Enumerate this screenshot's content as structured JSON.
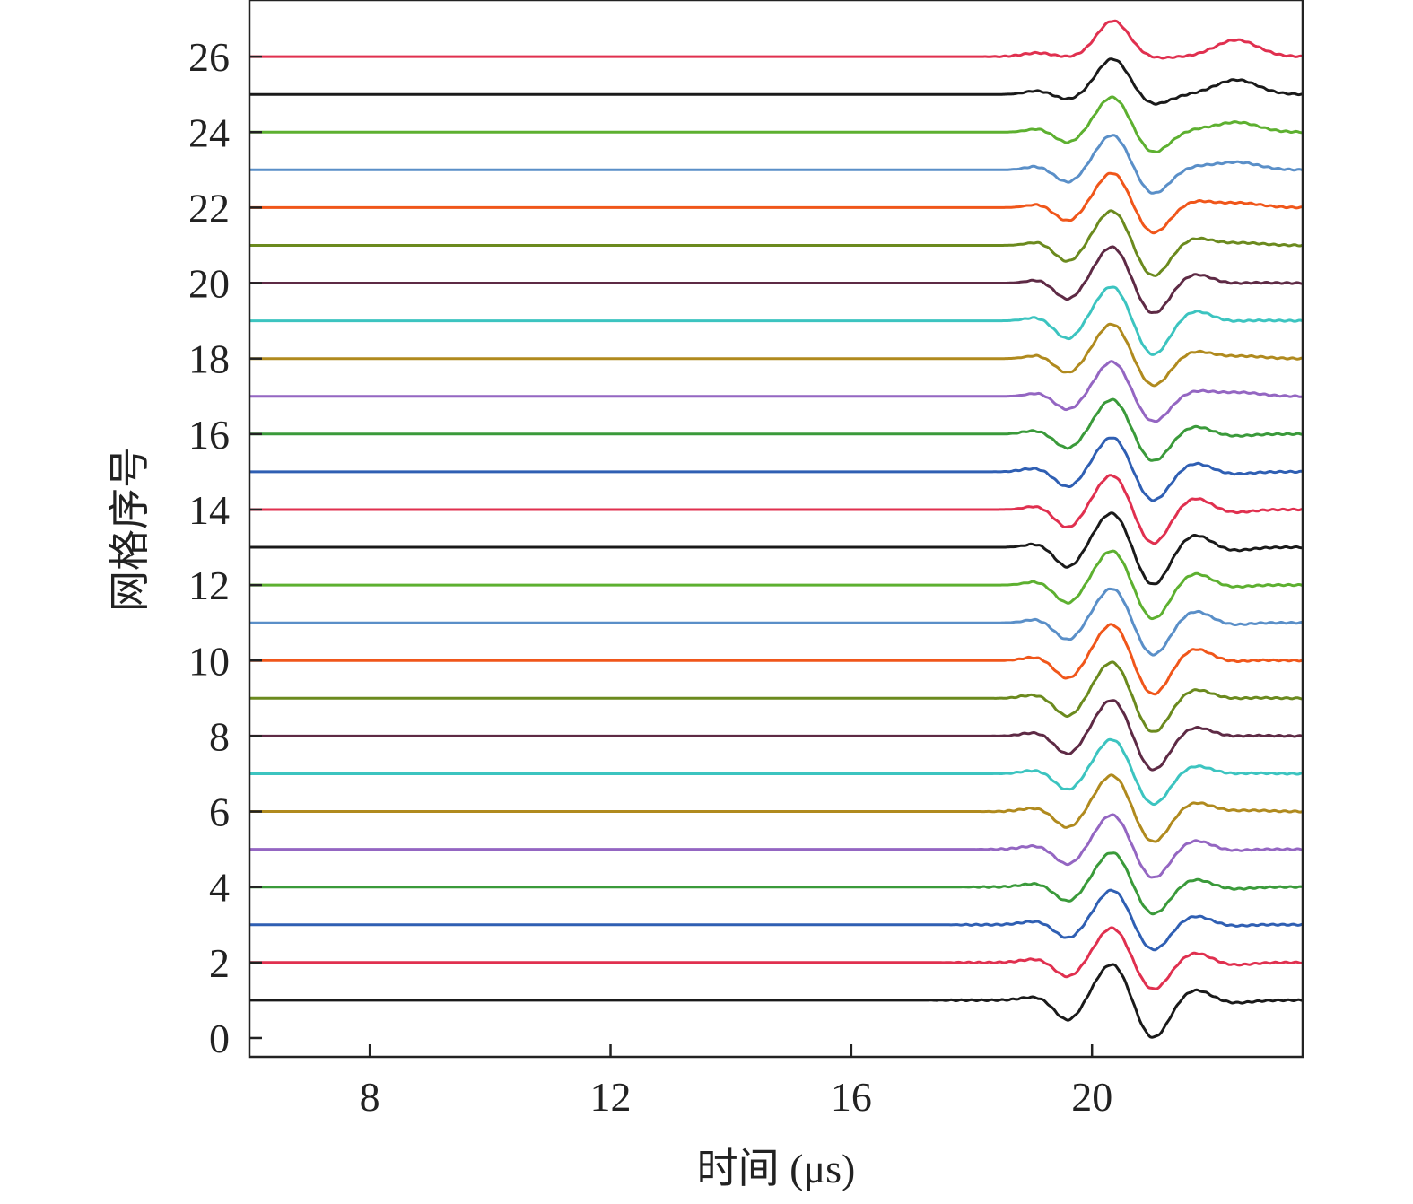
{
  "chart_data": {
    "type": "line",
    "title": "",
    "xlabel": "时间 (μs)",
    "ylabel": "网格序号",
    "xlim": [
      6,
      23.5
    ],
    "ylim": [
      -0.5,
      27.5
    ],
    "xticks": [
      8,
      12,
      16,
      20
    ],
    "yticks": [
      0,
      2,
      4,
      6,
      8,
      10,
      12,
      14,
      16,
      18,
      20,
      22,
      24,
      26
    ],
    "grid": false,
    "legend": "none",
    "y_spacing_per_trace": 1,
    "waveform_shape": {
      "description_units": "microseconds and trace-offset units",
      "precursor_peak_time": 19.1,
      "first_trough_time": 19.6,
      "main_peak_time": 20.35,
      "second_trough_time": 21.0,
      "second_peak_time": 21.7,
      "tail_peak_time": 22.4
    },
    "series": [
      {
        "index": 1,
        "baseline": 1,
        "onset": 17.1,
        "color": "#1a1a1a",
        "main_amp": 1.05,
        "trough_amp": 1.1,
        "second_peak_amp": 0.55,
        "tail_amp": 0.0
      },
      {
        "index": 2,
        "baseline": 2,
        "onset": 17.3,
        "color": "#e0304f",
        "main_amp": 1.0,
        "trough_amp": 0.8,
        "second_peak_amp": 0.5,
        "tail_amp": 0.0
      },
      {
        "index": 3,
        "baseline": 3,
        "onset": 17.4,
        "color": "#2f5fb3",
        "main_amp": 1.0,
        "trough_amp": 0.75,
        "second_peak_amp": 0.45,
        "tail_amp": 0.05
      },
      {
        "index": 4,
        "baseline": 4,
        "onset": 17.6,
        "color": "#3a9a3a",
        "main_amp": 1.0,
        "trough_amp": 0.8,
        "second_peak_amp": 0.4,
        "tail_amp": 0.0
      },
      {
        "index": 5,
        "baseline": 5,
        "onset": 17.9,
        "color": "#9466c2",
        "main_amp": 1.0,
        "trough_amp": 0.85,
        "second_peak_amp": 0.45,
        "tail_amp": 0.05
      },
      {
        "index": 6,
        "baseline": 6,
        "onset": 18.0,
        "color": "#b08a1e",
        "main_amp": 1.05,
        "trough_amp": 0.9,
        "second_peak_amp": 0.45,
        "tail_amp": 0.15
      },
      {
        "index": 7,
        "baseline": 7,
        "onset": 18.2,
        "color": "#3cc4c0",
        "main_amp": 1.0,
        "trough_amp": 0.9,
        "second_peak_amp": 0.4,
        "tail_amp": 0.1
      },
      {
        "index": 8,
        "baseline": 8,
        "onset": 18.2,
        "color": "#5e2a45",
        "main_amp": 1.05,
        "trough_amp": 1.0,
        "second_peak_amp": 0.45,
        "tail_amp": 0.1
      },
      {
        "index": 9,
        "baseline": 9,
        "onset": 18.2,
        "color": "#6b8a1e",
        "main_amp": 1.05,
        "trough_amp": 1.0,
        "second_peak_amp": 0.45,
        "tail_amp": 0.1
      },
      {
        "index": 10,
        "baseline": 10,
        "onset": 18.3,
        "color": "#f0561a",
        "main_amp": 1.05,
        "trough_amp": 1.0,
        "second_peak_amp": 0.6,
        "tail_amp": 0.1
      },
      {
        "index": 11,
        "baseline": 11,
        "onset": 18.4,
        "color": "#5a8fc8",
        "main_amp": 1.0,
        "trough_amp": 0.95,
        "second_peak_amp": 0.6,
        "tail_amp": 0.05
      },
      {
        "index": 12,
        "baseline": 12,
        "onset": 18.4,
        "color": "#5db030",
        "main_amp": 1.0,
        "trough_amp": 1.0,
        "second_peak_amp": 0.6,
        "tail_amp": 0.05
      },
      {
        "index": 13,
        "baseline": 13,
        "onset": 18.4,
        "color": "#1a1a1a",
        "main_amp": 1.0,
        "trough_amp": 1.1,
        "second_peak_amp": 0.65,
        "tail_amp": 0.0
      },
      {
        "index": 14,
        "baseline": 14,
        "onset": 18.4,
        "color": "#e0304f",
        "main_amp": 1.0,
        "trough_amp": 1.0,
        "second_peak_amp": 0.6,
        "tail_amp": 0.0
      },
      {
        "index": 15,
        "baseline": 15,
        "onset": 18.2,
        "color": "#2f5fb3",
        "main_amp": 1.0,
        "trough_amp": 0.85,
        "second_peak_amp": 0.45,
        "tail_amp": 0.0
      },
      {
        "index": 16,
        "baseline": 16,
        "onset": 18.3,
        "color": "#3a9a3a",
        "main_amp": 1.0,
        "trough_amp": 0.8,
        "second_peak_amp": 0.4,
        "tail_amp": 0.0
      },
      {
        "index": 17,
        "baseline": 17,
        "onset": 18.5,
        "color": "#9466c2",
        "main_amp": 1.0,
        "trough_amp": 0.75,
        "second_peak_amp": 0.25,
        "tail_amp": 0.25
      },
      {
        "index": 18,
        "baseline": 18,
        "onset": 18.5,
        "color": "#b08a1e",
        "main_amp": 1.0,
        "trough_amp": 0.8,
        "second_peak_amp": 0.35,
        "tail_amp": 0.2
      },
      {
        "index": 19,
        "baseline": 19,
        "onset": 18.4,
        "color": "#3cc4c0",
        "main_amp": 1.0,
        "trough_amp": 1.0,
        "second_peak_amp": 0.5,
        "tail_amp": 0.1
      },
      {
        "index": 20,
        "baseline": 20,
        "onset": 18.5,
        "color": "#5e2a45",
        "main_amp": 1.05,
        "trough_amp": 0.9,
        "second_peak_amp": 0.45,
        "tail_amp": 0.1
      },
      {
        "index": 21,
        "baseline": 21,
        "onset": 18.5,
        "color": "#6b8a1e",
        "main_amp": 1.0,
        "trough_amp": 0.9,
        "second_peak_amp": 0.35,
        "tail_amp": 0.2
      },
      {
        "index": 22,
        "baseline": 22,
        "onset": 18.5,
        "color": "#f0561a",
        "main_amp": 1.0,
        "trough_amp": 0.75,
        "second_peak_amp": 0.3,
        "tail_amp": 0.3
      },
      {
        "index": 23,
        "baseline": 23,
        "onset": 18.4,
        "color": "#5a8fc8",
        "main_amp": 1.0,
        "trough_amp": 0.7,
        "second_peak_amp": 0.15,
        "tail_amp": 0.4
      },
      {
        "index": 24,
        "baseline": 24,
        "onset": 18.5,
        "color": "#5db030",
        "main_amp": 1.0,
        "trough_amp": 0.6,
        "second_peak_amp": 0.1,
        "tail_amp": 0.5
      },
      {
        "index": 25,
        "baseline": 25,
        "onset": 18.4,
        "color": "#1a1a1a",
        "main_amp": 1.0,
        "trough_amp": 0.3,
        "second_peak_amp": 0.0,
        "tail_amp": 0.7
      },
      {
        "index": 26,
        "baseline": 26,
        "onset": 18.0,
        "color": "#e0304f",
        "main_amp": 1.0,
        "trough_amp": 0.05,
        "second_peak_amp": 0.0,
        "tail_amp": 0.8
      }
    ]
  }
}
